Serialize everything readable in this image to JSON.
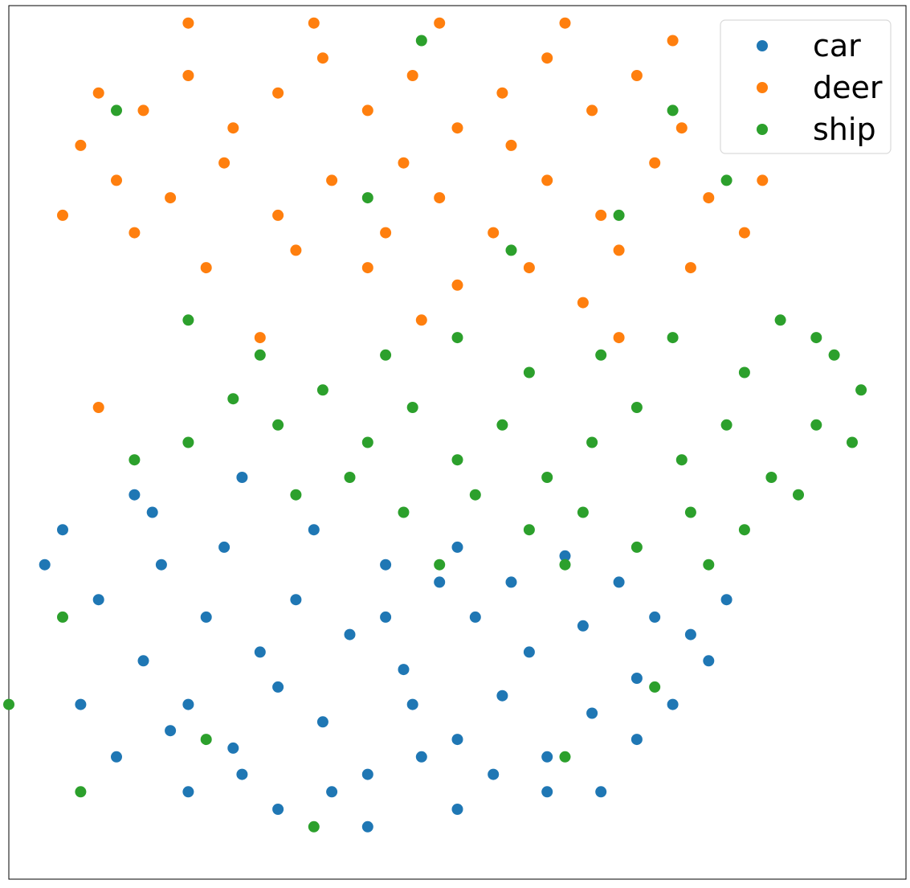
{
  "chart_data": {
    "type": "scatter",
    "title": "",
    "xlabel": "",
    "ylabel": "",
    "xlim": [
      -50,
      50
    ],
    "ylim": [
      -50,
      50
    ],
    "grid": false,
    "axis_ticks": false,
    "legend_position": "top-right",
    "marker_shape": "circle",
    "series": [
      {
        "name": "car",
        "color": "#1f77b4",
        "points": [
          [
            -30,
            -30
          ],
          [
            -25,
            -35
          ],
          [
            -20,
            -28
          ],
          [
            -15,
            -32
          ],
          [
            -10,
            -38
          ],
          [
            -5,
            -30
          ],
          [
            0,
            -34
          ],
          [
            5,
            -29
          ],
          [
            10,
            -36
          ],
          [
            15,
            -31
          ],
          [
            20,
            -27
          ],
          [
            -35,
            -25
          ],
          [
            -28,
            -20
          ],
          [
            -22,
            -24
          ],
          [
            -18,
            -18
          ],
          [
            -12,
            -22
          ],
          [
            -6,
            -26
          ],
          [
            2,
            -20
          ],
          [
            8,
            -24
          ],
          [
            14,
            -21
          ],
          [
            18,
            -16
          ],
          [
            -40,
            -18
          ],
          [
            -33,
            -14
          ],
          [
            -26,
            -12
          ],
          [
            -16,
            -10
          ],
          [
            -8,
            -14
          ],
          [
            0,
            -12
          ],
          [
            6,
            -16
          ],
          [
            12,
            -13
          ],
          [
            -42,
            -30
          ],
          [
            -38,
            -36
          ],
          [
            -30,
            -40
          ],
          [
            -20,
            -42
          ],
          [
            -10,
            -44
          ],
          [
            0,
            -42
          ],
          [
            10,
            -40
          ],
          [
            -24,
            -38
          ],
          [
            -14,
            -40
          ],
          [
            4,
            -38
          ],
          [
            22,
            -20
          ],
          [
            26,
            -22
          ],
          [
            30,
            -18
          ],
          [
            28,
            -25
          ],
          [
            -44,
            -10
          ],
          [
            -46,
            -14
          ],
          [
            -36,
            -6
          ],
          [
            -34,
            -8
          ],
          [
            -24,
            -4
          ],
          [
            -4,
            -36
          ],
          [
            16,
            -40
          ],
          [
            -32,
            -33
          ],
          [
            -8,
            -20
          ],
          [
            -2,
            -16
          ],
          [
            20,
            -34
          ],
          [
            24,
            -30
          ]
        ]
      },
      {
        "name": "deer",
        "color": "#ff7f0e",
        "points": [
          [
            -40,
            40
          ],
          [
            -35,
            38
          ],
          [
            -30,
            42
          ],
          [
            -25,
            36
          ],
          [
            -20,
            40
          ],
          [
            -15,
            44
          ],
          [
            -10,
            38
          ],
          [
            -5,
            42
          ],
          [
            0,
            36
          ],
          [
            5,
            40
          ],
          [
            10,
            44
          ],
          [
            15,
            38
          ],
          [
            20,
            42
          ],
          [
            25,
            36
          ],
          [
            30,
            40
          ],
          [
            35,
            34
          ],
          [
            -38,
            30
          ],
          [
            -32,
            28
          ],
          [
            -26,
            32
          ],
          [
            -20,
            26
          ],
          [
            -14,
            30
          ],
          [
            -8,
            24
          ],
          [
            -2,
            28
          ],
          [
            4,
            24
          ],
          [
            10,
            30
          ],
          [
            16,
            26
          ],
          [
            22,
            32
          ],
          [
            28,
            28
          ],
          [
            34,
            30
          ],
          [
            -42,
            34
          ],
          [
            -36,
            24
          ],
          [
            -28,
            20
          ],
          [
            -18,
            22
          ],
          [
            -10,
            20
          ],
          [
            0,
            18
          ],
          [
            8,
            20
          ],
          [
            18,
            22
          ],
          [
            26,
            20
          ],
          [
            -30,
            48
          ],
          [
            -16,
            48
          ],
          [
            -2,
            48
          ],
          [
            12,
            48
          ],
          [
            24,
            46
          ],
          [
            -6,
            32
          ],
          [
            6,
            34
          ],
          [
            38,
            36
          ],
          [
            -44,
            26
          ],
          [
            14,
            16
          ],
          [
            -22,
            12
          ],
          [
            -40,
            4
          ],
          [
            18,
            12
          ],
          [
            -4,
            14
          ],
          [
            32,
            24
          ]
        ]
      },
      {
        "name": "ship",
        "color": "#2ca02c",
        "points": [
          [
            -25,
            5
          ],
          [
            -20,
            2
          ],
          [
            -15,
            6
          ],
          [
            -10,
            0
          ],
          [
            -5,
            4
          ],
          [
            0,
            -2
          ],
          [
            5,
            2
          ],
          [
            10,
            -4
          ],
          [
            15,
            0
          ],
          [
            20,
            4
          ],
          [
            25,
            -2
          ],
          [
            30,
            2
          ],
          [
            35,
            -4
          ],
          [
            40,
            2
          ],
          [
            45,
            6
          ],
          [
            -18,
            -6
          ],
          [
            -12,
            -4
          ],
          [
            -6,
            -8
          ],
          [
            2,
            -6
          ],
          [
            8,
            -10
          ],
          [
            14,
            -8
          ],
          [
            20,
            -12
          ],
          [
            26,
            -8
          ],
          [
            32,
            -10
          ],
          [
            38,
            -6
          ],
          [
            -8,
            10
          ],
          [
            0,
            12
          ],
          [
            8,
            8
          ],
          [
            16,
            10
          ],
          [
            24,
            12
          ],
          [
            32,
            8
          ],
          [
            40,
            12
          ],
          [
            44,
            0
          ],
          [
            -30,
            0
          ],
          [
            -36,
            -2
          ],
          [
            -2,
            -14
          ],
          [
            12,
            -14
          ],
          [
            28,
            -14
          ],
          [
            36,
            14
          ],
          [
            42,
            10
          ],
          [
            -22,
            10
          ],
          [
            -30,
            14
          ],
          [
            -50,
            -30
          ],
          [
            -42,
            -40
          ],
          [
            -28,
            -34
          ],
          [
            -16,
            -44
          ],
          [
            12,
            -36
          ],
          [
            22,
            -28
          ],
          [
            -44,
            -20
          ],
          [
            -10,
            28
          ],
          [
            6,
            22
          ],
          [
            24,
            38
          ],
          [
            30,
            30
          ],
          [
            -38,
            38
          ],
          [
            -4,
            46
          ],
          [
            18,
            26
          ]
        ]
      }
    ]
  }
}
